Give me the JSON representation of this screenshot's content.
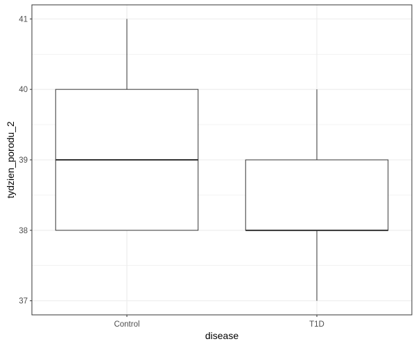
{
  "chart_data": {
    "type": "boxplot",
    "xlabel": "disease",
    "ylabel": "tydzien_porodu_2",
    "ylim": [
      36.8,
      41.2
    ],
    "y_ticks": [
      37,
      38,
      39,
      40,
      41
    ],
    "y_tick_labels": [
      "37",
      "38",
      "39",
      "40",
      "41"
    ],
    "categories": [
      "Control",
      "T1D"
    ],
    "boxes": [
      {
        "category": "Control",
        "whisker_low": 38,
        "q1": 38,
        "median": 39,
        "q3": 40,
        "whisker_high": 41
      },
      {
        "category": "T1D",
        "whisker_low": 37,
        "q1": 38,
        "median": 38,
        "q3": 39,
        "whisker_high": 40
      }
    ],
    "grid": true,
    "theme": "bw",
    "colors": {
      "box_fill": "#ffffff",
      "box_line": "#333333",
      "grid": "#ebebeb",
      "panel_border": "#333333"
    }
  }
}
